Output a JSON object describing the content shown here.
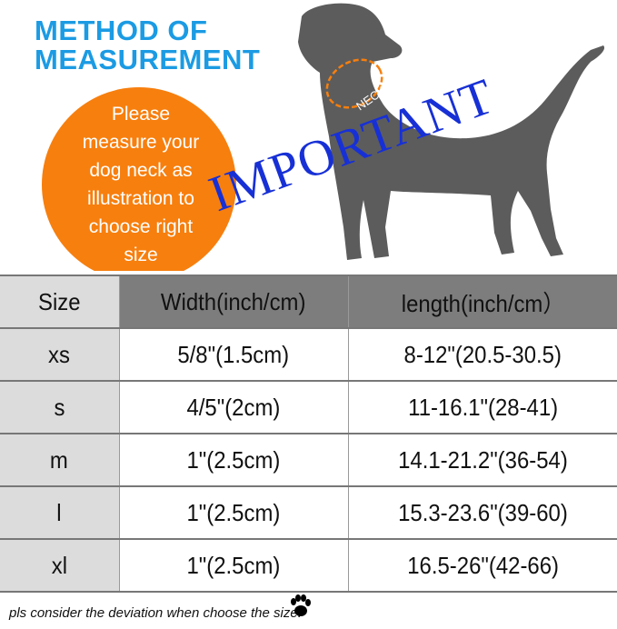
{
  "title": {
    "line1": "METHOD OF",
    "line2": "MEASUREMENT"
  },
  "instruction": {
    "lines": [
      "Please",
      "measure your",
      "dog neck as",
      "illustration to",
      "choose right",
      "size"
    ]
  },
  "neck_label": "NECK",
  "important_label": "IMPORTANT",
  "table": {
    "headers": [
      "Size",
      "Width(inch/cm)",
      "length(inch/cm）"
    ],
    "rows": [
      [
        "xs",
        "5/8\"(1.5cm)",
        "8-12\"(20.5-30.5)"
      ],
      [
        "s",
        "4/5\"(2cm)",
        "11-16.1\"(28-41)"
      ],
      [
        "m",
        "1\"(2.5cm)",
        "14.1-21.2\"(36-54)"
      ],
      [
        "l",
        "1\"(2.5cm)",
        "15.3-23.6\"(39-60)"
      ],
      [
        "xl",
        "1\"(2.5cm)",
        "16.5-26\"(42-66)"
      ]
    ]
  },
  "note": "pls consider the deviation when choose the size.",
  "colors": {
    "title": "#1b9be3",
    "circle": "#f77f0e",
    "important": "#1730d6",
    "dog": "#5c5c5c",
    "header_dark": "#7d7d7d",
    "size_col": "#dcdcdc"
  }
}
